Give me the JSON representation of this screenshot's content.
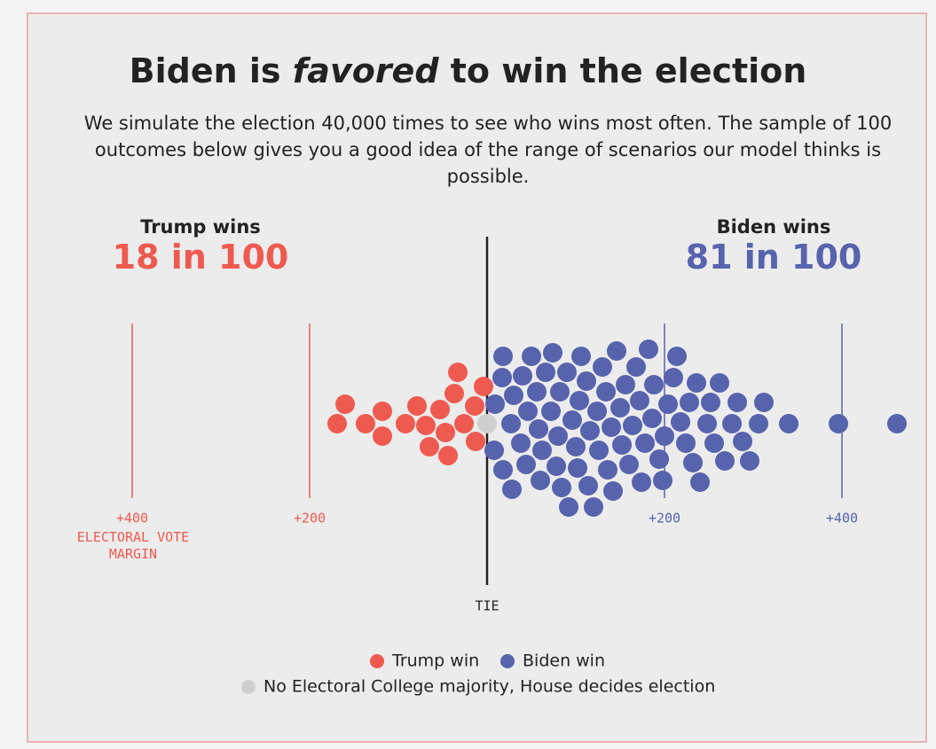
{
  "chart_data": {
    "type": "beeswarm",
    "title": {
      "before": "Biden is",
      "emphasis": "favored",
      "after": "to win the election"
    },
    "subtitle": "We simulate the election 40,000 times to see who wins most often. The sample of 100 outcomes below gives you a good idea of the range of scenarios our model thinks is possible.",
    "headlines": [
      {
        "label": "Trump wins",
        "value": "18 in 100"
      },
      {
        "label": "Biden wins",
        "value": "81 in 100"
      }
    ],
    "x_label": "ELECTORAL VOTE MARGIN",
    "xlim": [
      -450,
      500
    ],
    "xticks": [
      {
        "value": -400,
        "label": "+400"
      },
      {
        "value": -200,
        "label": "+200"
      },
      {
        "value": 0,
        "label": "TIE"
      },
      {
        "value": 200,
        "label": "+200"
      },
      {
        "value": 400,
        "label": "+400"
      }
    ],
    "series": [
      {
        "name": "Trump win",
        "color": "#ef5a50",
        "values": [
          -169,
          -160,
          -137,
          -118,
          -118,
          -92,
          -79,
          -69,
          -65,
          -53,
          -47,
          -44,
          -37,
          -33,
          -26,
          -14,
          -13,
          -4
        ]
      },
      {
        "name": "Biden win",
        "color": "#5763ad",
        "values": [
          8,
          9,
          17,
          18,
          18,
          27,
          28,
          30,
          38,
          40,
          44,
          46,
          50,
          56,
          58,
          60,
          62,
          66,
          72,
          74,
          78,
          80,
          82,
          84,
          90,
          92,
          96,
          100,
          102,
          104,
          106,
          112,
          114,
          116,
          120,
          124,
          126,
          130,
          134,
          136,
          140,
          142,
          146,
          150,
          152,
          156,
          160,
          164,
          168,
          172,
          174,
          178,
          182,
          186,
          188,
          194,
          198,
          200,
          204,
          210,
          214,
          218,
          224,
          228,
          232,
          236,
          240,
          248,
          252,
          256,
          262,
          268,
          276,
          282,
          288,
          296,
          306,
          312,
          340,
          396,
          462
        ]
      },
      {
        "name": "No Electoral College majority, House decides election",
        "color": "#cfcfcf",
        "values": [
          0
        ]
      }
    ]
  }
}
